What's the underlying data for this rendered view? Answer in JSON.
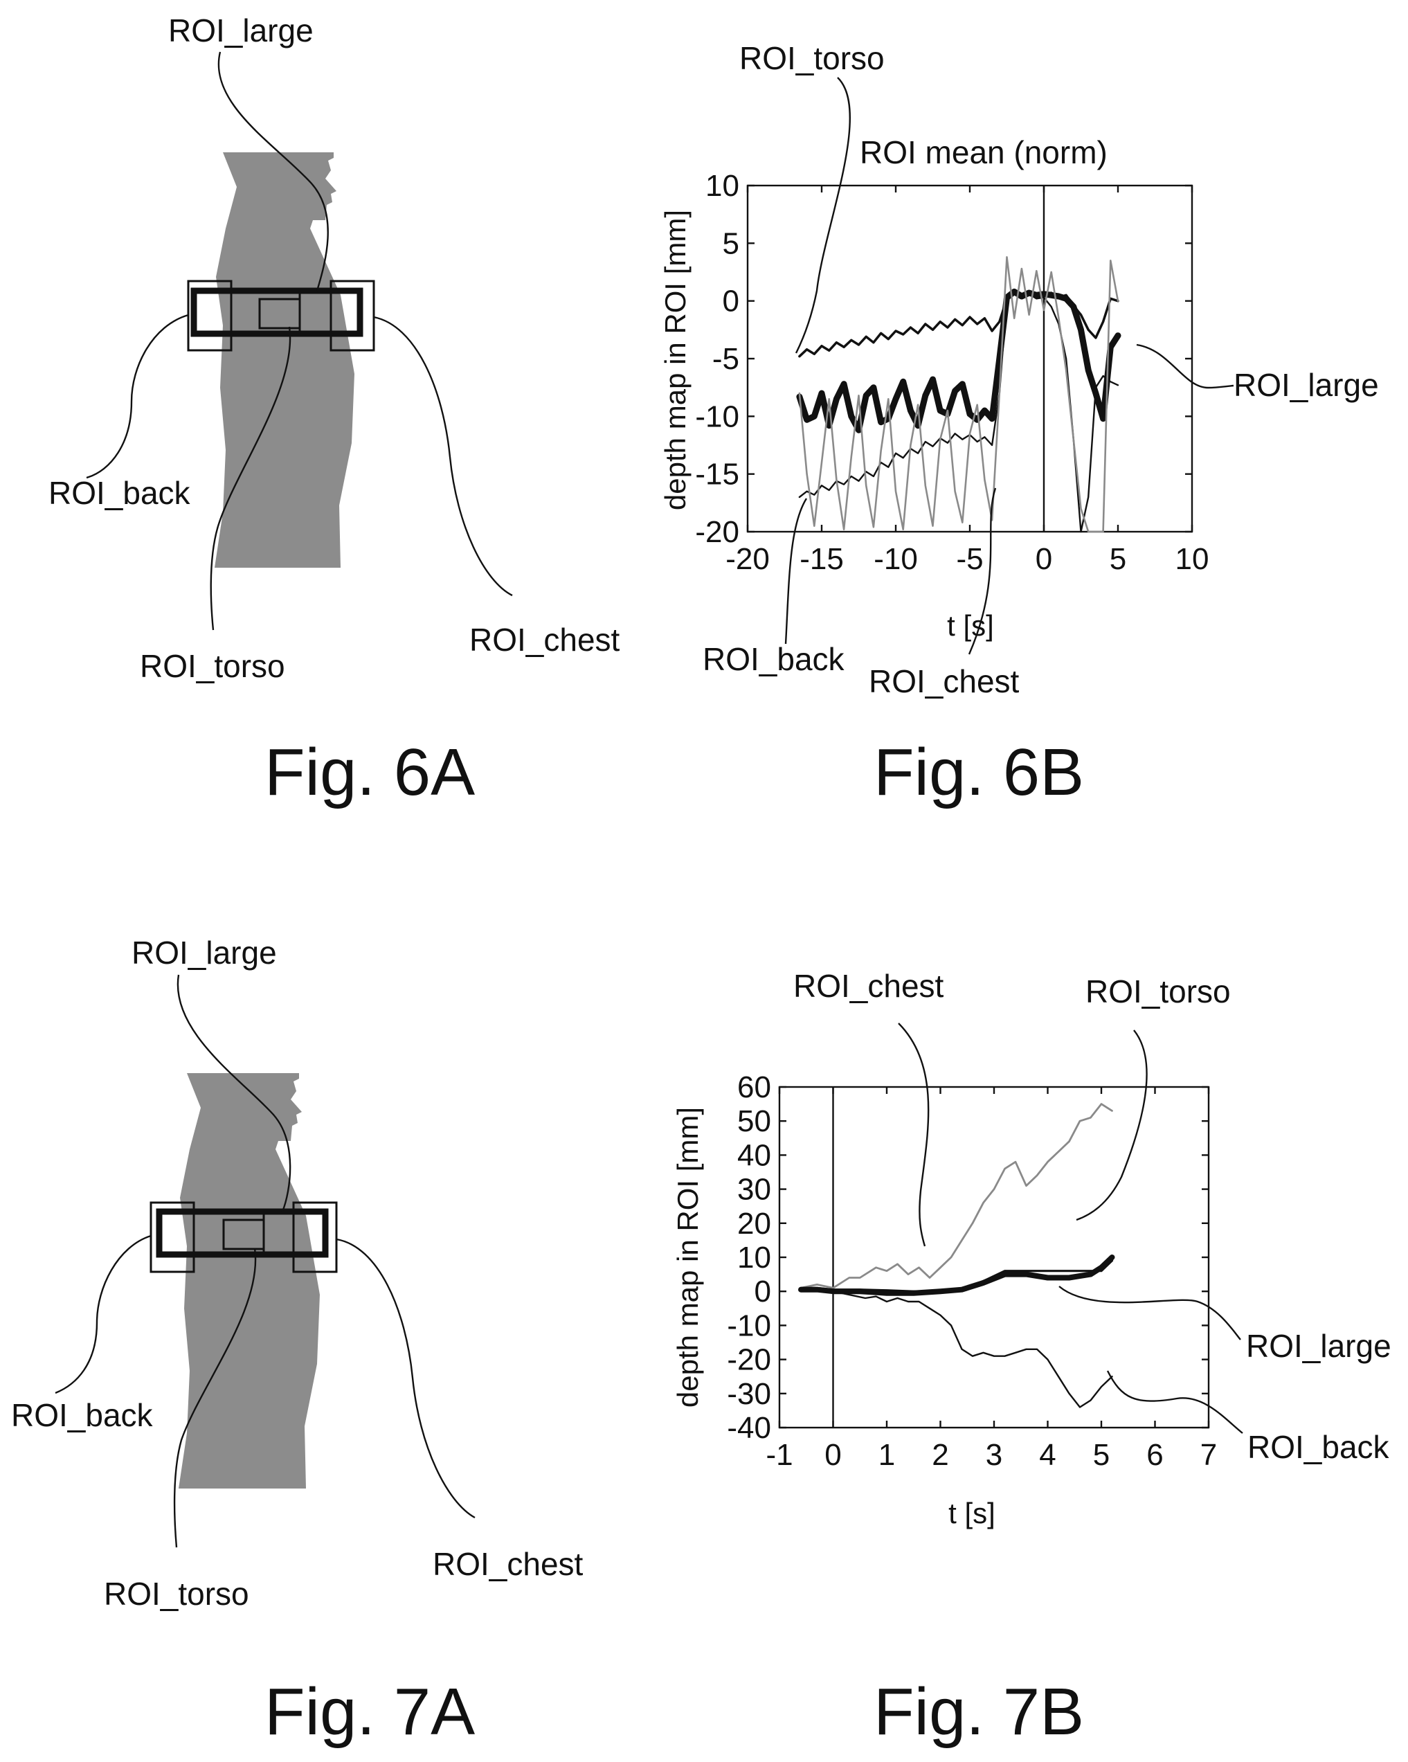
{
  "figures": {
    "fig6a": {
      "caption": "Fig. 6A",
      "labels": {
        "large": "ROI_large",
        "back": "ROI_back",
        "torso": "ROI_torso",
        "chest": "ROI_chest"
      }
    },
    "fig6b": {
      "caption": "Fig. 6B",
      "title": "ROI mean (norm)",
      "labels": {
        "torso": "ROI_torso",
        "large": "ROI_large",
        "back": "ROI_back",
        "chest": "ROI_chest"
      }
    },
    "fig7a": {
      "caption": "Fig. 7A",
      "labels": {
        "large": "ROI_large",
        "back": "ROI_back",
        "torso": "ROI_torso",
        "chest": "ROI_chest"
      }
    },
    "fig7b": {
      "caption": "Fig. 7B",
      "labels": {
        "chest": "ROI_chest",
        "torso": "ROI_torso",
        "large": "ROI_large",
        "back": "ROI_back"
      }
    }
  },
  "colors": {
    "ink": "#111111",
    "silhouette": "#8c8c8c",
    "chest_series": "#8a8a8a"
  },
  "chart_data": [
    {
      "id": "fig6b",
      "type": "line",
      "title": "ROI mean (norm)",
      "xlabel": "t [s]",
      "ylabel": "depth map in ROI [mm]",
      "xlim": [
        -20,
        10
      ],
      "ylim": [
        -20,
        10
      ],
      "xticks": [
        -20,
        -15,
        -10,
        -5,
        0,
        5,
        10
      ],
      "yticks": [
        10,
        5,
        0,
        -5,
        -10,
        -15,
        -20
      ],
      "grid": false,
      "vline_x": 0,
      "series": [
        {
          "name": "ROI_torso",
          "color": "#111111",
          "width": 3.5,
          "x": [
            -16.5,
            -16,
            -15.5,
            -15,
            -14.5,
            -14,
            -13.5,
            -13,
            -12.5,
            -12,
            -11.5,
            -11,
            -10.5,
            -10,
            -9.5,
            -9,
            -8.5,
            -8,
            -7.5,
            -7,
            -6.5,
            -6,
            -5.5,
            -5,
            -4.5,
            -4,
            -3.5,
            -3,
            -2.5,
            -2,
            -1.5,
            -1,
            -0.5,
            0,
            0.5,
            1,
            1.5,
            2,
            2.5,
            3,
            3.5,
            4,
            4.5,
            5
          ],
          "y": [
            -4.8,
            -4.2,
            -4.6,
            -3.9,
            -4.3,
            -3.6,
            -4.0,
            -3.4,
            -3.8,
            -3.1,
            -3.6,
            -2.8,
            -3.3,
            -2.6,
            -2.9,
            -2.3,
            -2.8,
            -2.0,
            -2.5,
            -1.8,
            -2.3,
            -1.6,
            -2.1,
            -1.4,
            -2.0,
            -1.5,
            -2.6,
            -1.8,
            0.2,
            0.8,
            0.6,
            0.7,
            0.5,
            0.6,
            0.7,
            0.3,
            0.5,
            -0.4,
            -1.2,
            -2.5,
            -3.2,
            -1.8,
            0.2,
            0
          ]
        },
        {
          "name": "ROI_large",
          "color": "#111111",
          "width": 9,
          "x": [
            -16.5,
            -16,
            -15.5,
            -15,
            -14.5,
            -14,
            -13.5,
            -13,
            -12.5,
            -12,
            -11.5,
            -11,
            -10.5,
            -10,
            -9.5,
            -9,
            -8.5,
            -8,
            -7.5,
            -7,
            -6.5,
            -6,
            -5.5,
            -5,
            -4.5,
            -4,
            -3.5,
            -3,
            -2.5,
            -2,
            -1.5,
            -1,
            -0.5,
            0,
            0.5,
            1,
            1.5,
            2,
            2.5,
            3,
            3.5,
            4,
            4.5,
            5
          ],
          "y": [
            -8.3,
            -10.3,
            -10.0,
            -8.0,
            -10.8,
            -8.5,
            -7.2,
            -10.0,
            -11.2,
            -8.2,
            -7.5,
            -10.5,
            -10.2,
            -8.5,
            -7.0,
            -9.5,
            -10.8,
            -8.2,
            -6.8,
            -9.5,
            -9.8,
            -7.8,
            -7.2,
            -9.8,
            -10.3,
            -9.5,
            -10.2,
            -5.0,
            0.3,
            0.8,
            0.4,
            0.7,
            0.5,
            0.6,
            0.5,
            0.4,
            0.2,
            -0.5,
            -2.5,
            -6.0,
            -8.0,
            -10.2,
            -4.0,
            -3.0
          ]
        },
        {
          "name": "ROI_back",
          "color": "#111111",
          "width": 2.4,
          "x": [
            -16.5,
            -16,
            -15.5,
            -15,
            -14.5,
            -14,
            -13.5,
            -13,
            -12.5,
            -12,
            -11.5,
            -11,
            -10.5,
            -10,
            -9.5,
            -9,
            -8.5,
            -8,
            -7.5,
            -7,
            -6.5,
            -6,
            -5.5,
            -5,
            -4.5,
            -4,
            -3.5,
            -3,
            -2.5,
            -2,
            -1.5,
            -1,
            -0.5,
            0,
            0.5,
            1,
            1.5,
            2,
            2.5,
            3,
            3.5,
            4,
            4.5,
            5
          ],
          "y": [
            -17.0,
            -16.5,
            -16.8,
            -16.0,
            -16.4,
            -15.6,
            -15.9,
            -15.2,
            -15.6,
            -14.8,
            -15.2,
            -14.0,
            -14.4,
            -13.2,
            -13.6,
            -12.8,
            -13.2,
            -12.2,
            -12.6,
            -11.9,
            -12.3,
            -11.5,
            -12.0,
            -11.6,
            -12.2,
            -11.8,
            -12.5,
            -8.0,
            0.3,
            0.6,
            0.5,
            0.6,
            0.2,
            0.3,
            -0.5,
            -2.0,
            -5.0,
            -12.0,
            -20.0,
            -17.0,
            -7.5,
            -6.5,
            -7.0,
            -7.3
          ]
        },
        {
          "name": "ROI_chest",
          "color": "#8a8a8a",
          "width": 2.6,
          "x": [
            -16.5,
            -16,
            -15.5,
            -15,
            -14.5,
            -14,
            -13.5,
            -13,
            -12.5,
            -12,
            -11.5,
            -11,
            -10.5,
            -10,
            -9.5,
            -9,
            -8.5,
            -8,
            -7.5,
            -7,
            -6.5,
            -6,
            -5.5,
            -5,
            -4.5,
            -4,
            -3.5,
            -3,
            -2.5,
            -2,
            -1.5,
            -1,
            -0.5,
            0,
            0.5,
            1,
            1.5,
            2,
            2.5,
            3,
            3.5,
            4,
            4.5,
            5
          ],
          "y": [
            -8.0,
            -15.0,
            -19.5,
            -14.0,
            -8.5,
            -15.5,
            -19.8,
            -13.5,
            -8.2,
            -16.0,
            -19.6,
            -13.0,
            -8.5,
            -16.5,
            -19.8,
            -12.5,
            -9.0,
            -16.0,
            -19.5,
            -12.0,
            -9.5,
            -16.5,
            -19.2,
            -11.5,
            -9.0,
            -15.5,
            -19.0,
            -8.0,
            3.8,
            -1.5,
            2.8,
            -1.2,
            2.6,
            -0.8,
            2.5,
            -1.5,
            -6.0,
            -12.0,
            -18.0,
            -20.0,
            -20.0,
            -20.0,
            3.5,
            0
          ]
        }
      ]
    },
    {
      "id": "fig7b",
      "type": "line",
      "title": "",
      "xlabel": "t [s]",
      "ylabel": "depth map in ROI [mm]",
      "xlim": [
        -1,
        7
      ],
      "ylim": [
        -40,
        60
      ],
      "xticks": [
        -1,
        0,
        1,
        2,
        3,
        4,
        5,
        6,
        7
      ],
      "yticks": [
        60,
        50,
        40,
        30,
        20,
        10,
        0,
        -10,
        -20,
        -30,
        -40
      ],
      "grid": false,
      "vline_x": 0,
      "series": [
        {
          "name": "ROI_chest",
          "color": "#8a8a8a",
          "width": 2.8,
          "x": [
            -0.6,
            -0.3,
            0,
            0.3,
            0.5,
            0.8,
            1.0,
            1.2,
            1.4,
            1.6,
            1.8,
            2.0,
            2.2,
            2.4,
            2.6,
            2.8,
            3.0,
            3.2,
            3.4,
            3.6,
            3.8,
            4.0,
            4.2,
            4.4,
            4.6,
            4.8,
            5.0,
            5.2
          ],
          "y": [
            1,
            2,
            1,
            4,
            4,
            7,
            6,
            8,
            5,
            7,
            4,
            7,
            10,
            15,
            20,
            26,
            30,
            36,
            38,
            31,
            34,
            38,
            41,
            44,
            50,
            51,
            55,
            53
          ]
        },
        {
          "name": "ROI_torso",
          "color": "#111111",
          "width": 3.2,
          "x": [
            -0.6,
            -0.3,
            0,
            0.5,
            1.0,
            1.5,
            2.0,
            2.4,
            2.8,
            3.2,
            3.6,
            4.0,
            4.4,
            4.8,
            5.0,
            5.2
          ],
          "y": [
            1,
            1,
            0.5,
            0.5,
            0.3,
            0,
            0,
            0.5,
            3,
            6,
            6,
            6,
            6,
            6,
            6,
            9
          ]
        },
        {
          "name": "ROI_large",
          "color": "#111111",
          "width": 8,
          "x": [
            -0.6,
            -0.3,
            0,
            0.5,
            1.0,
            1.5,
            2.0,
            2.4,
            2.8,
            3.2,
            3.6,
            4.0,
            4.4,
            4.8,
            5.0,
            5.2
          ],
          "y": [
            0.5,
            0.5,
            0,
            0,
            -0.5,
            -0.5,
            0,
            0.5,
            2.5,
            5,
            5,
            4,
            4,
            5,
            7,
            10
          ]
        },
        {
          "name": "ROI_back",
          "color": "#111111",
          "width": 2.4,
          "x": [
            -0.6,
            -0.3,
            0,
            0.3,
            0.6,
            0.8,
            1.0,
            1.2,
            1.4,
            1.6,
            1.8,
            2.0,
            2.2,
            2.4,
            2.6,
            2.8,
            3.0,
            3.2,
            3.4,
            3.6,
            3.8,
            4.0,
            4.2,
            4.4,
            4.6,
            4.8,
            5.0,
            5.2
          ],
          "y": [
            1,
            0.5,
            0,
            -1,
            -2,
            -1.5,
            -3,
            -2,
            -3,
            -3,
            -5,
            -7,
            -10,
            -17,
            -19,
            -18,
            -19,
            -19,
            -18,
            -17,
            -17,
            -20,
            -25,
            -30,
            -34,
            -32,
            -28,
            -25
          ]
        }
      ]
    }
  ]
}
